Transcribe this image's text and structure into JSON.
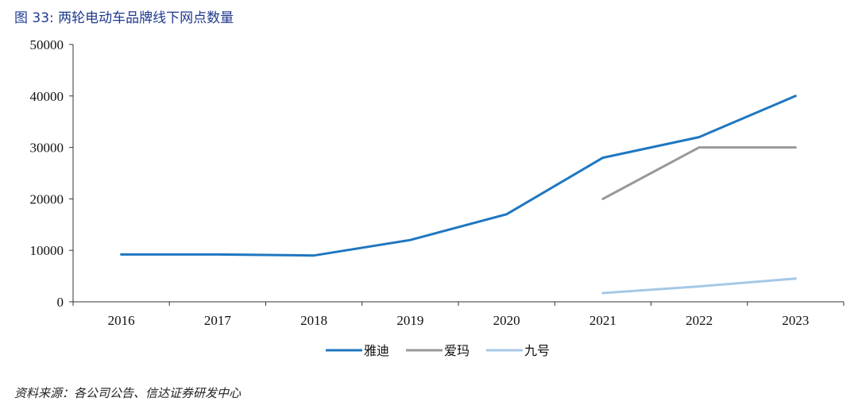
{
  "figure": {
    "title": "图 33: 两轮电动车品牌线下网点数量",
    "source": "资料来源：各公司公告、信达证券研发中心"
  },
  "chart_data": {
    "type": "line",
    "title": "",
    "xlabel": "",
    "ylabel": "",
    "categories": [
      "2016",
      "2017",
      "2018",
      "2019",
      "2020",
      "2021",
      "2022",
      "2023"
    ],
    "ylim": [
      0,
      50000
    ],
    "yticks": [
      0,
      10000,
      20000,
      30000,
      40000,
      50000
    ],
    "ytick_labels": [
      "0",
      "10000",
      "20000",
      "30000",
      "40000",
      "50000"
    ],
    "grid": false,
    "legend_position": "bottom",
    "series": [
      {
        "name": "雅迪",
        "color": "#1f77c0",
        "values": [
          9200,
          9200,
          9000,
          12000,
          17000,
          28000,
          32000,
          40000
        ]
      },
      {
        "name": "爱玛",
        "color": "#999999",
        "values": [
          null,
          null,
          null,
          null,
          null,
          20000,
          30000,
          30000
        ]
      },
      {
        "name": "九号",
        "color": "#a6c8e6",
        "values": [
          null,
          null,
          null,
          null,
          null,
          1700,
          3000,
          4500
        ]
      }
    ]
  }
}
